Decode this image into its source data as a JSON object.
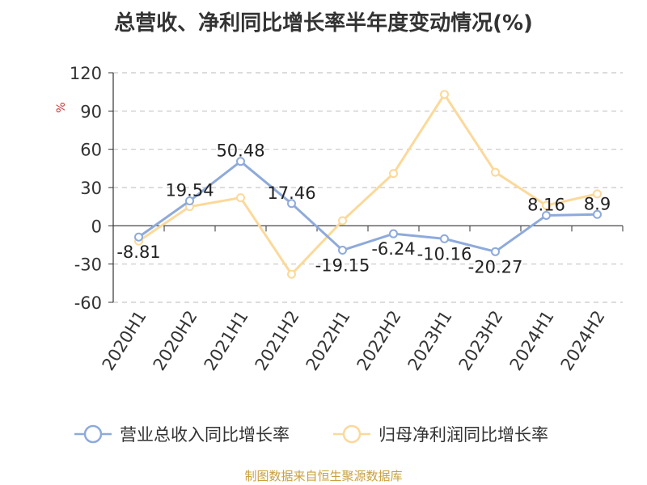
{
  "chart_data": {
    "type": "line",
    "title": "总营收、净利同比增长率半年度变动情况(%)",
    "ylabel": "%",
    "xlabel": "",
    "categories": [
      "2020H1",
      "2020H2",
      "2021H1",
      "2021H2",
      "2022H1",
      "2022H2",
      "2023H1",
      "2023H2",
      "2024H1",
      "2024H2"
    ],
    "ylim": [
      -60,
      120
    ],
    "yticks": [
      -60,
      -30,
      0,
      30,
      60,
      90,
      120
    ],
    "grid": "horizontal-dashed",
    "legend_position": "bottom",
    "series": [
      {
        "name": "营业总收入同比增长率",
        "color": "#8eaadb",
        "values": [
          -8.81,
          19.54,
          50.48,
          17.46,
          -19.15,
          -6.24,
          -10.16,
          -20.27,
          8.16,
          8.9
        ],
        "labels": [
          "-8.81",
          "19.54",
          "50.48",
          "17.46",
          "-19.15",
          "-6.24",
          "-10.16",
          "-20.27",
          "8.16",
          "8.9"
        ]
      },
      {
        "name": "归母净利润同比增长率",
        "color": "#fbd99a",
        "values": [
          -12,
          15,
          22,
          -38,
          4,
          41,
          103,
          42,
          16,
          25
        ]
      }
    ]
  },
  "source": "制图数据来自恒生聚源数据库"
}
